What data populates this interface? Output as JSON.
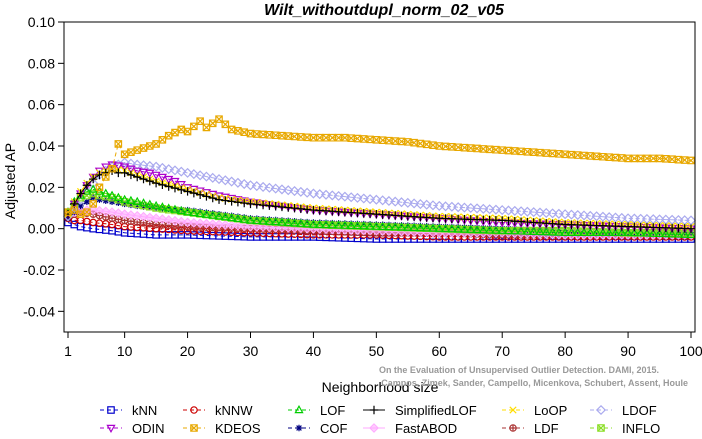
{
  "chart_data": {
    "type": "line",
    "title": "Wilt_withoutdupl_norm_02_v05",
    "xlabel": "Neighborhood size",
    "ylabel": "Adjusted AP",
    "xlim": [
      1,
      100
    ],
    "ylim": [
      -0.05,
      0.1
    ],
    "xticks": [
      1,
      10,
      20,
      30,
      40,
      50,
      60,
      70,
      80,
      90,
      100
    ],
    "yticks": [
      -0.04,
      -0.02,
      0.0,
      0.02,
      0.04,
      0.06,
      0.08,
      0.1
    ],
    "ytick_labels": [
      "-0.04",
      "-0.02",
      "0.00",
      "0.02",
      "0.04",
      "0.06",
      "0.08",
      "0.10"
    ],
    "grid": false,
    "legend_position": "bottom",
    "watermark": "Campos, Zimek, Sander, Campello, Micenkova, Schubert, Assent, Houle. On the Evaluation of Unsupervised Outlier Detection. DAMI, 2015.",
    "series": [
      {
        "name": "kNN",
        "color": "#0000cc",
        "marker": "square",
        "dash": "dash",
        "points": [
          [
            1,
            0.003
          ],
          [
            2,
            0.002
          ],
          [
            3,
            0.001
          ],
          [
            5,
            0.0
          ],
          [
            8,
            -0.001
          ],
          [
            10,
            -0.002
          ],
          [
            15,
            -0.003
          ],
          [
            20,
            -0.003
          ],
          [
            30,
            -0.004
          ],
          [
            40,
            -0.004
          ],
          [
            50,
            -0.005
          ],
          [
            60,
            -0.005
          ],
          [
            70,
            -0.005
          ],
          [
            80,
            -0.005
          ],
          [
            90,
            -0.005
          ],
          [
            100,
            -0.005
          ]
        ]
      },
      {
        "name": "kNNW",
        "color": "#cc0000",
        "marker": "circle",
        "dash": "dash",
        "points": [
          [
            1,
            0.005
          ],
          [
            2,
            0.004
          ],
          [
            3,
            0.004
          ],
          [
            5,
            0.003
          ],
          [
            8,
            0.002
          ],
          [
            10,
            0.001
          ],
          [
            15,
            0.0
          ],
          [
            20,
            -0.001
          ],
          [
            30,
            -0.002
          ],
          [
            40,
            -0.003
          ],
          [
            50,
            -0.003
          ],
          [
            60,
            -0.004
          ],
          [
            70,
            -0.004
          ],
          [
            80,
            -0.004
          ],
          [
            90,
            -0.004
          ],
          [
            100,
            -0.004
          ]
        ]
      },
      {
        "name": "LOF",
        "color": "#00cc00",
        "marker": "triangle-up",
        "dash": "dash",
        "points": [
          [
            1,
            0.008
          ],
          [
            2,
            0.013
          ],
          [
            3,
            0.016
          ],
          [
            4,
            0.018
          ],
          [
            5,
            0.019
          ],
          [
            6,
            0.018
          ],
          [
            8,
            0.016
          ],
          [
            10,
            0.014
          ],
          [
            12,
            0.013
          ],
          [
            15,
            0.011
          ],
          [
            20,
            0.008
          ],
          [
            25,
            0.006
          ],
          [
            30,
            0.004
          ],
          [
            40,
            0.002
          ],
          [
            50,
            0.001
          ],
          [
            60,
            0.0
          ],
          [
            70,
            -0.001
          ],
          [
            80,
            -0.002
          ],
          [
            90,
            -0.002
          ],
          [
            100,
            -0.003
          ]
        ]
      },
      {
        "name": "SimplifiedLOF",
        "color": "#000000",
        "marker": "plus",
        "dash": "solid",
        "points": [
          [
            1,
            0.007
          ],
          [
            2,
            0.012
          ],
          [
            3,
            0.017
          ],
          [
            4,
            0.021
          ],
          [
            5,
            0.024
          ],
          [
            6,
            0.026
          ],
          [
            7,
            0.027
          ],
          [
            8,
            0.028
          ],
          [
            9,
            0.027
          ],
          [
            10,
            0.027
          ],
          [
            12,
            0.025
          ],
          [
            15,
            0.022
          ],
          [
            20,
            0.018
          ],
          [
            25,
            0.014
          ],
          [
            30,
            0.012
          ],
          [
            40,
            0.009
          ],
          [
            50,
            0.007
          ],
          [
            60,
            0.005
          ],
          [
            70,
            0.004
          ],
          [
            80,
            0.002
          ],
          [
            90,
            0.001
          ],
          [
            100,
            0.0
          ]
        ]
      },
      {
        "name": "LoOP",
        "color": "#ffdd00",
        "marker": "x",
        "dash": "dash",
        "points": [
          [
            1,
            0.007
          ],
          [
            2,
            0.013
          ],
          [
            3,
            0.018
          ],
          [
            4,
            0.022
          ],
          [
            5,
            0.025
          ],
          [
            6,
            0.027
          ],
          [
            8,
            0.029
          ],
          [
            10,
            0.028
          ],
          [
            12,
            0.026
          ],
          [
            15,
            0.023
          ],
          [
            20,
            0.019
          ],
          [
            25,
            0.015
          ],
          [
            30,
            0.013
          ],
          [
            40,
            0.01
          ],
          [
            50,
            0.008
          ],
          [
            60,
            0.006
          ],
          [
            70,
            0.005
          ],
          [
            80,
            0.003
          ],
          [
            90,
            0.002
          ],
          [
            100,
            0.001
          ]
        ]
      },
      {
        "name": "LDOF",
        "color": "#aaaaee",
        "marker": "diamond",
        "dash": "dash",
        "points": [
          [
            1,
            0.006
          ],
          [
            2,
            0.01
          ],
          [
            3,
            0.014
          ],
          [
            4,
            0.018
          ],
          [
            5,
            0.022
          ],
          [
            6,
            0.026
          ],
          [
            8,
            0.03
          ],
          [
            10,
            0.032
          ],
          [
            12,
            0.031
          ],
          [
            15,
            0.03
          ],
          [
            20,
            0.027
          ],
          [
            25,
            0.024
          ],
          [
            30,
            0.021
          ],
          [
            40,
            0.017
          ],
          [
            50,
            0.014
          ],
          [
            60,
            0.011
          ],
          [
            70,
            0.009
          ],
          [
            80,
            0.007
          ],
          [
            90,
            0.005
          ],
          [
            100,
            0.004
          ]
        ]
      },
      {
        "name": "ODIN",
        "color": "#aa00cc",
        "marker": "triangle-down",
        "dash": "dash",
        "points": [
          [
            1,
            0.007
          ],
          [
            2,
            0.012
          ],
          [
            3,
            0.017
          ],
          [
            4,
            0.021
          ],
          [
            5,
            0.025
          ],
          [
            6,
            0.028
          ],
          [
            7,
            0.03
          ],
          [
            8,
            0.031
          ],
          [
            10,
            0.03
          ],
          [
            12,
            0.028
          ],
          [
            14,
            0.027
          ],
          [
            15,
            0.026
          ],
          [
            18,
            0.023
          ],
          [
            20,
            0.02
          ],
          [
            25,
            0.016
          ],
          [
            30,
            0.013
          ],
          [
            40,
            0.009
          ],
          [
            50,
            0.007
          ],
          [
            60,
            0.005
          ],
          [
            70,
            0.003
          ],
          [
            80,
            0.002
          ],
          [
            90,
            0.001
          ],
          [
            100,
            0.0
          ]
        ]
      },
      {
        "name": "KDEOS",
        "color": "#e8a800",
        "marker": "square-x",
        "dash": "dash",
        "points": [
          [
            1,
            0.008
          ],
          [
            2,
            0.009
          ],
          [
            3,
            0.007
          ],
          [
            4,
            0.008
          ],
          [
            5,
            0.012
          ],
          [
            6,
            0.02
          ],
          [
            7,
            0.025
          ],
          [
            8,
            0.029
          ],
          [
            9,
            0.041
          ],
          [
            10,
            0.036
          ],
          [
            12,
            0.038
          ],
          [
            15,
            0.041
          ],
          [
            17,
            0.045
          ],
          [
            19,
            0.048
          ],
          [
            20,
            0.047
          ],
          [
            22,
            0.052
          ],
          [
            23,
            0.049
          ],
          [
            25,
            0.053
          ],
          [
            27,
            0.048
          ],
          [
            30,
            0.046
          ],
          [
            35,
            0.045
          ],
          [
            40,
            0.044
          ],
          [
            45,
            0.044
          ],
          [
            50,
            0.043
          ],
          [
            55,
            0.042
          ],
          [
            60,
            0.04
          ],
          [
            65,
            0.039
          ],
          [
            70,
            0.038
          ],
          [
            75,
            0.037
          ],
          [
            80,
            0.036
          ],
          [
            85,
            0.035
          ],
          [
            90,
            0.034
          ],
          [
            95,
            0.034
          ],
          [
            100,
            0.033
          ]
        ]
      },
      {
        "name": "COF",
        "color": "#000080",
        "marker": "asterisk",
        "dash": "dash",
        "points": [
          [
            1,
            0.005
          ],
          [
            2,
            0.008
          ],
          [
            3,
            0.011
          ],
          [
            4,
            0.013
          ],
          [
            5,
            0.015
          ],
          [
            6,
            0.014
          ],
          [
            8,
            0.013
          ],
          [
            10,
            0.012
          ],
          [
            12,
            0.011
          ],
          [
            15,
            0.01
          ],
          [
            20,
            0.009
          ],
          [
            25,
            0.007
          ],
          [
            30,
            0.005
          ],
          [
            40,
            0.003
          ],
          [
            50,
            0.002
          ],
          [
            60,
            0.001
          ],
          [
            70,
            0.0
          ],
          [
            80,
            -0.001
          ],
          [
            90,
            -0.002
          ],
          [
            100,
            -0.002
          ]
        ]
      },
      {
        "name": "FastABOD",
        "color": "#ffaaff",
        "marker": "diamond-filled",
        "dash": "solid",
        "points": [
          [
            1,
            0.006
          ],
          [
            2,
            0.008
          ],
          [
            3,
            0.009
          ],
          [
            5,
            0.009
          ],
          [
            8,
            0.008
          ],
          [
            10,
            0.007
          ],
          [
            15,
            0.005
          ],
          [
            20,
            0.003
          ],
          [
            30,
            0.001
          ],
          [
            40,
            0.0
          ],
          [
            50,
            -0.001
          ],
          [
            60,
            -0.002
          ],
          [
            70,
            -0.002
          ],
          [
            80,
            -0.003
          ],
          [
            90,
            -0.003
          ],
          [
            100,
            -0.003
          ]
        ]
      },
      {
        "name": "LDF",
        "color": "#aa3333",
        "marker": "circle-plus",
        "dash": "dash",
        "points": [
          [
            1,
            0.006
          ],
          [
            2,
            0.007
          ],
          [
            3,
            0.008
          ],
          [
            5,
            0.007
          ],
          [
            8,
            0.005
          ],
          [
            10,
            0.004
          ],
          [
            15,
            0.002
          ],
          [
            20,
            0.001
          ],
          [
            30,
            0.0
          ],
          [
            40,
            -0.001
          ],
          [
            50,
            -0.002
          ],
          [
            60,
            -0.002
          ],
          [
            70,
            -0.003
          ],
          [
            80,
            -0.003
          ],
          [
            90,
            -0.003
          ],
          [
            100,
            -0.003
          ]
        ]
      },
      {
        "name": "INFLO",
        "color": "#88dd22",
        "marker": "square-x",
        "dash": "dash",
        "points": [
          [
            1,
            0.008
          ],
          [
            2,
            0.012
          ],
          [
            3,
            0.015
          ],
          [
            4,
            0.016
          ],
          [
            5,
            0.017
          ],
          [
            6,
            0.016
          ],
          [
            8,
            0.015
          ],
          [
            10,
            0.013
          ],
          [
            15,
            0.01
          ],
          [
            20,
            0.008
          ],
          [
            25,
            0.006
          ],
          [
            30,
            0.004
          ],
          [
            40,
            0.002
          ],
          [
            50,
            0.001
          ],
          [
            60,
            0.0
          ],
          [
            70,
            -0.001
          ],
          [
            80,
            -0.001
          ],
          [
            90,
            -0.002
          ],
          [
            100,
            -0.002
          ]
        ]
      }
    ]
  }
}
